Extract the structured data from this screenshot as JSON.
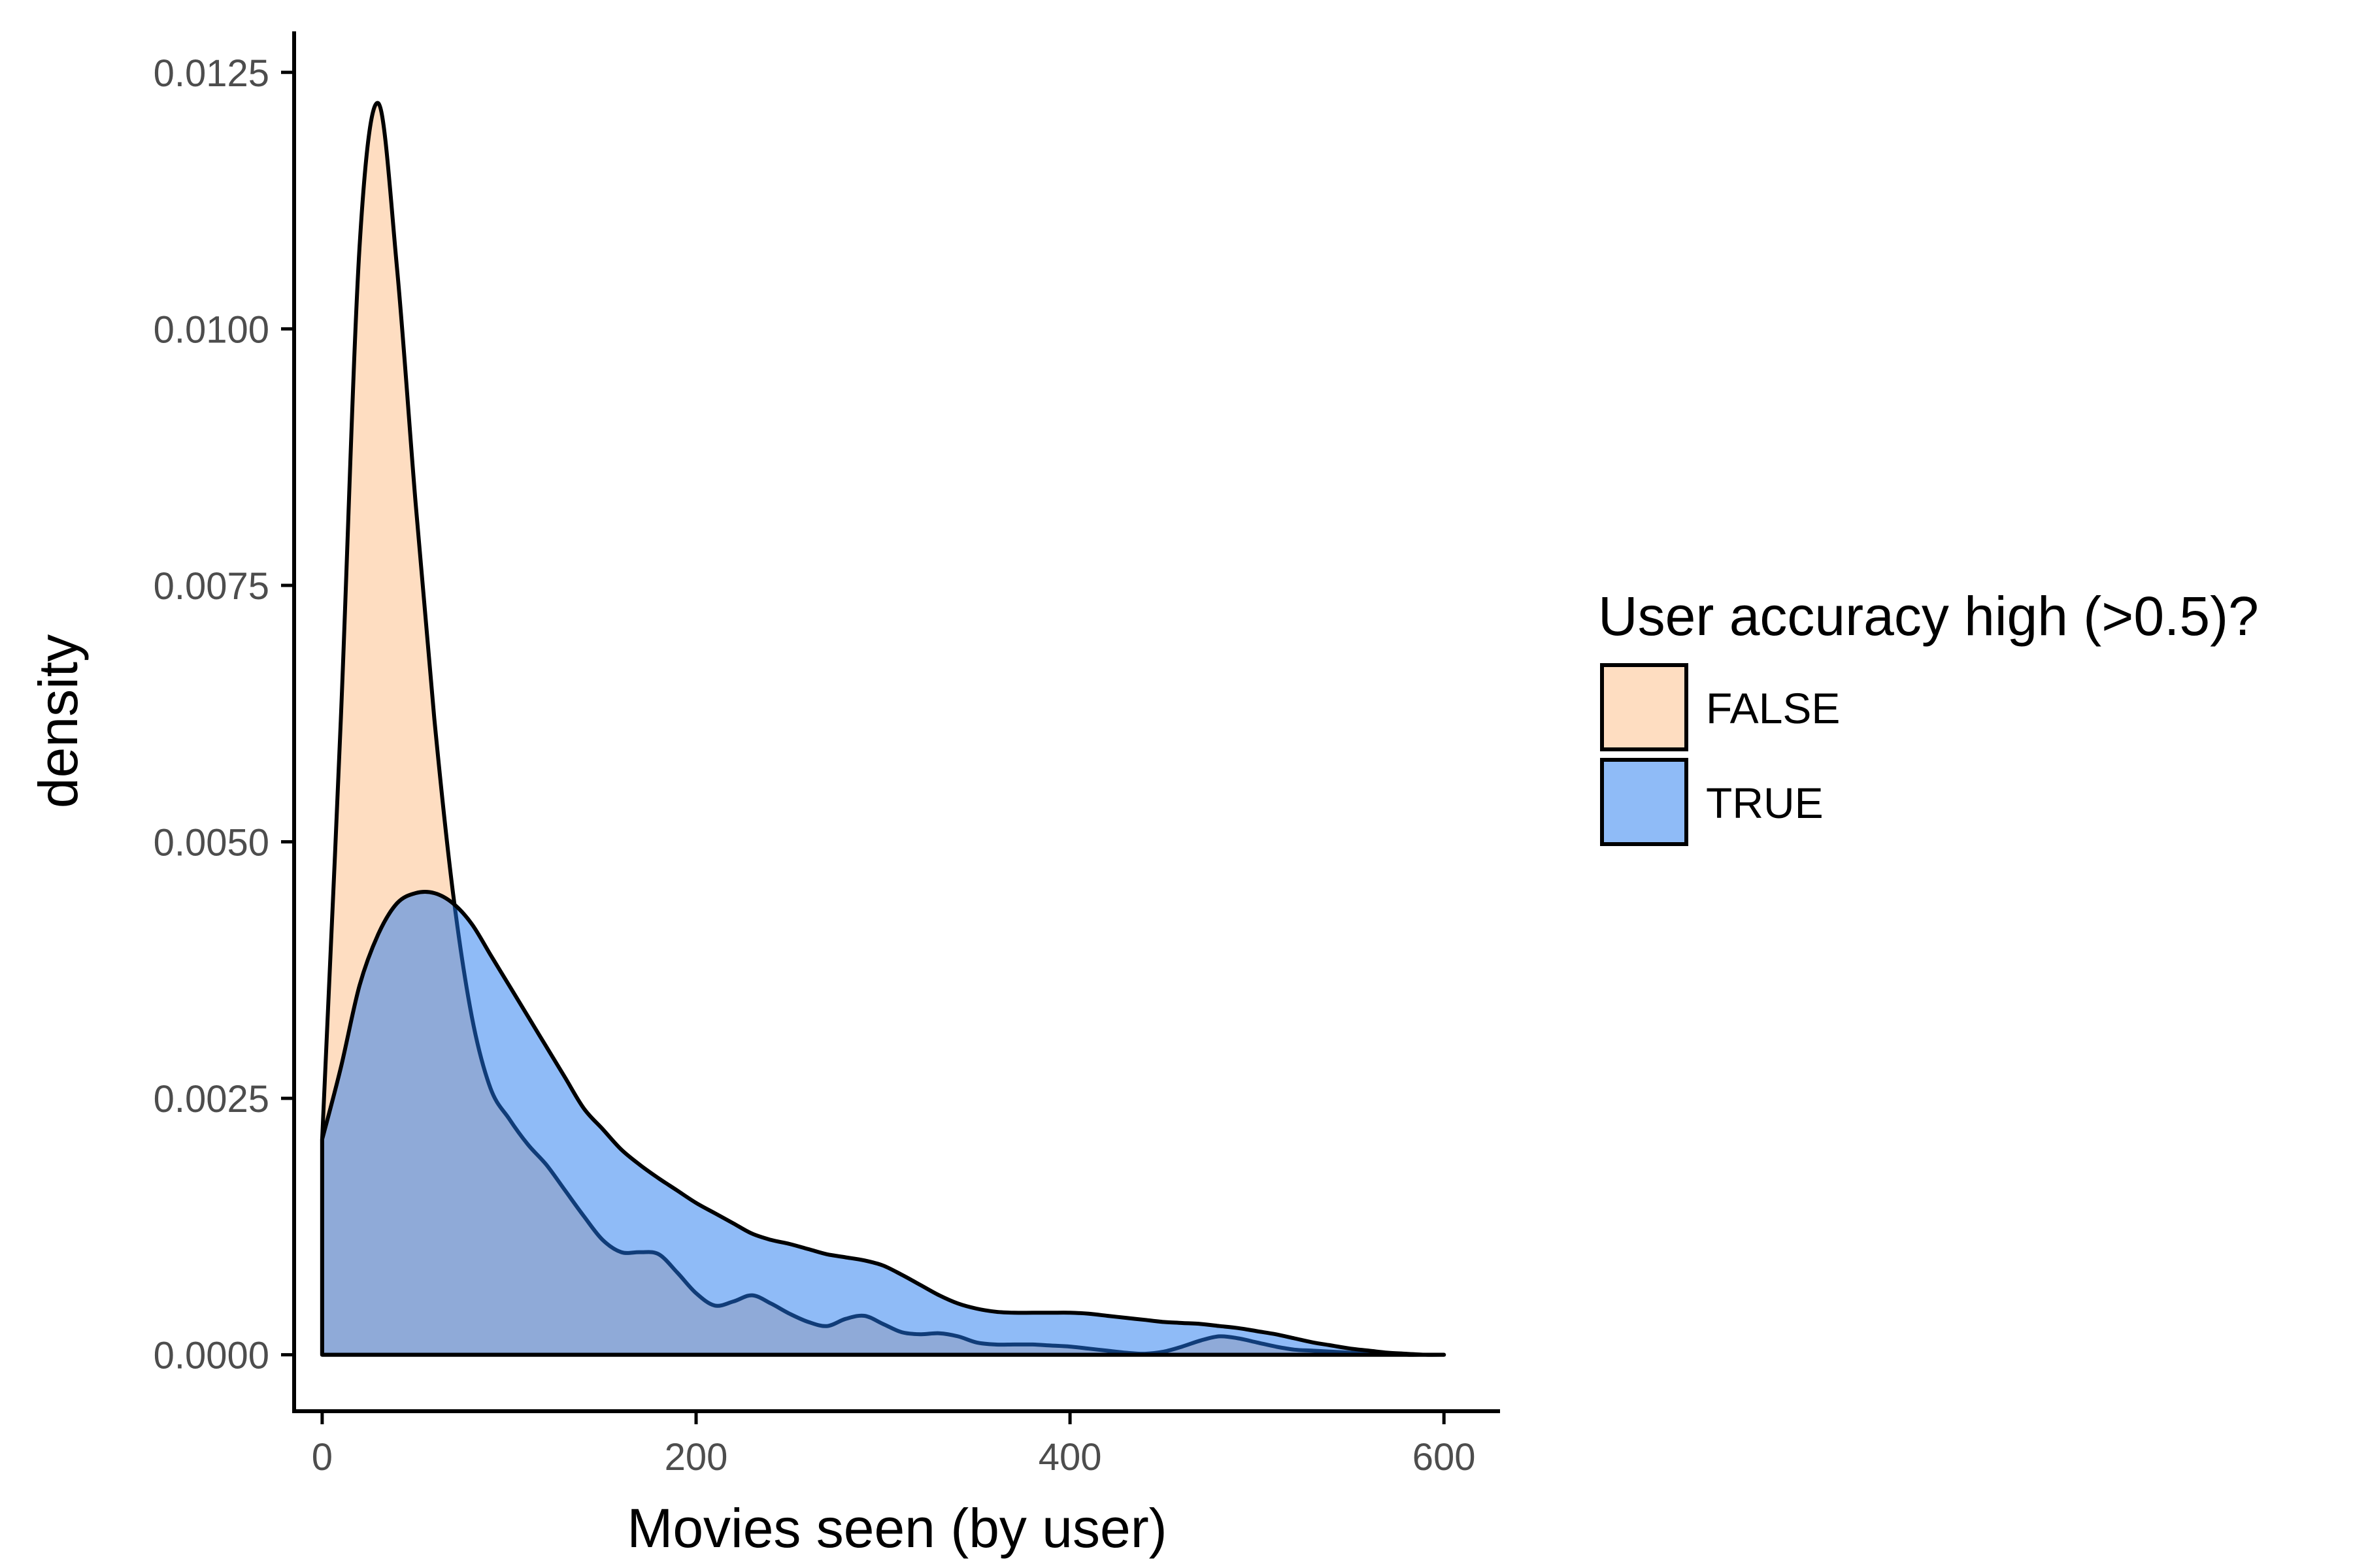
{
  "chart_data": {
    "type": "area",
    "subtype": "density",
    "xlabel": "Movies seen (by user)",
    "ylabel": "density",
    "xlim": [
      -15,
      630
    ],
    "ylim": [
      -0.00055,
      0.0129
    ],
    "x_ticks": [
      0,
      200,
      400,
      600
    ],
    "x_tick_labels": [
      "0",
      "200",
      "400",
      "600"
    ],
    "y_ticks": [
      0,
      0.0025,
      0.005,
      0.0075,
      0.01,
      0.0125
    ],
    "y_tick_labels": [
      "0.0000",
      "0.0025",
      "0.0050",
      "0.0075",
      "0.0100",
      "0.0125"
    ],
    "grid": false,
    "legend": {
      "title": "User accuracy high (>0.5)?",
      "position": "right"
    },
    "series": [
      {
        "name": "FALSE",
        "color": "#fdbb84",
        "fill_opacity": 0.5,
        "x": [
          0,
          10,
          20,
          30,
          40,
          50,
          60,
          70,
          80,
          90,
          100,
          110,
          120,
          130,
          140,
          150,
          160,
          170,
          180,
          190,
          200,
          210,
          220,
          230,
          240,
          250,
          260,
          270,
          280,
          290,
          300,
          310,
          320,
          330,
          340,
          350,
          360,
          370,
          380,
          390,
          400,
          410,
          420,
          430,
          440,
          450,
          460,
          470,
          480,
          490,
          500,
          510,
          520,
          530,
          540,
          550,
          560,
          570,
          580,
          590,
          600
        ],
        "values": [
          0.0021,
          0.0062,
          0.0108,
          0.0122,
          0.0106,
          0.0083,
          0.0062,
          0.0045,
          0.0033,
          0.0026,
          0.0023,
          0.00205,
          0.00185,
          0.0016,
          0.00135,
          0.00112,
          0.001,
          0.001,
          0.00098,
          0.0008,
          0.0006,
          0.00048,
          0.00052,
          0.00058,
          0.0005,
          0.0004,
          0.00032,
          0.00028,
          0.00035,
          0.00038,
          0.0003,
          0.00022,
          0.0002,
          0.00021,
          0.00018,
          0.00012,
          0.0001,
          0.0001,
          0.0001,
          9e-05,
          8e-05,
          6e-05,
          4e-05,
          2e-05,
          1e-05,
          3e-05,
          8e-05,
          0.00014,
          0.00018,
          0.00016,
          0.00012,
          8e-05,
          5e-05,
          4e-05,
          3e-05,
          2e-05,
          1e-05,
          1e-05,
          0,
          0,
          0
        ]
      },
      {
        "name": "TRUE",
        "color": "#1f78f0",
        "fill_opacity": 0.5,
        "x": [
          0,
          10,
          20,
          30,
          40,
          50,
          60,
          70,
          80,
          90,
          100,
          110,
          120,
          130,
          140,
          150,
          160,
          170,
          180,
          190,
          200,
          210,
          220,
          230,
          240,
          250,
          260,
          270,
          280,
          290,
          300,
          310,
          320,
          330,
          340,
          350,
          360,
          370,
          380,
          390,
          400,
          410,
          420,
          430,
          440,
          450,
          460,
          470,
          480,
          490,
          500,
          510,
          520,
          530,
          540,
          550,
          560,
          570,
          580,
          590,
          600
        ],
        "values": [
          0.0021,
          0.0028,
          0.0036,
          0.0041,
          0.0044,
          0.0045,
          0.0045,
          0.0044,
          0.0042,
          0.0039,
          0.0036,
          0.0033,
          0.003,
          0.0027,
          0.0024,
          0.0022,
          0.002,
          0.00185,
          0.00172,
          0.0016,
          0.00148,
          0.00138,
          0.00128,
          0.00118,
          0.00112,
          0.00108,
          0.00103,
          0.00098,
          0.00095,
          0.00092,
          0.00087,
          0.00078,
          0.00068,
          0.00058,
          0.0005,
          0.00045,
          0.00042,
          0.00041,
          0.00041,
          0.00041,
          0.00041,
          0.0004,
          0.00038,
          0.00036,
          0.00034,
          0.00032,
          0.00031,
          0.0003,
          0.00028,
          0.00026,
          0.00023,
          0.0002,
          0.00016,
          0.00012,
          9e-05,
          6e-05,
          4e-05,
          2e-05,
          1e-05,
          0,
          0
        ]
      }
    ]
  }
}
